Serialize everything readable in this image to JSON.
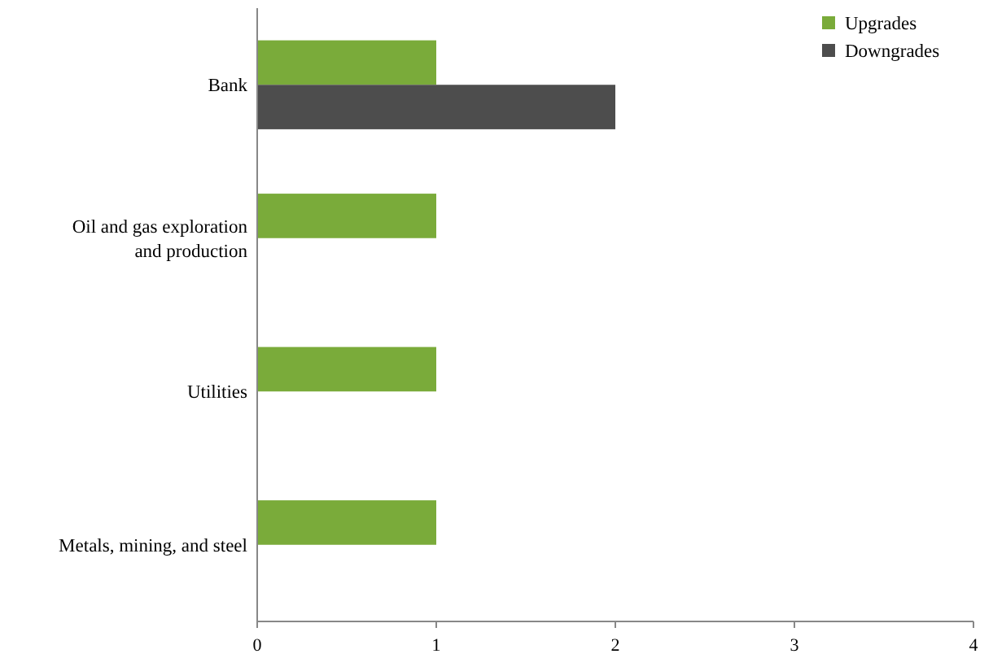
{
  "chart_data": {
    "type": "bar",
    "orientation": "horizontal",
    "categories": [
      "Bank",
      "Oil and gas exploration and production",
      "Utilities",
      "Metals, mining, and steel"
    ],
    "series": [
      {
        "name": "Upgrades",
        "color": "#7aab3a",
        "values": [
          1,
          1,
          1,
          1
        ]
      },
      {
        "name": "Downgrades",
        "color": "#4d4d4d",
        "values": [
          2,
          0,
          0,
          0
        ]
      }
    ],
    "xlim": [
      0,
      4
    ],
    "xticks": [
      0,
      1,
      2,
      3,
      4
    ],
    "grid": false,
    "legend": "top right"
  }
}
